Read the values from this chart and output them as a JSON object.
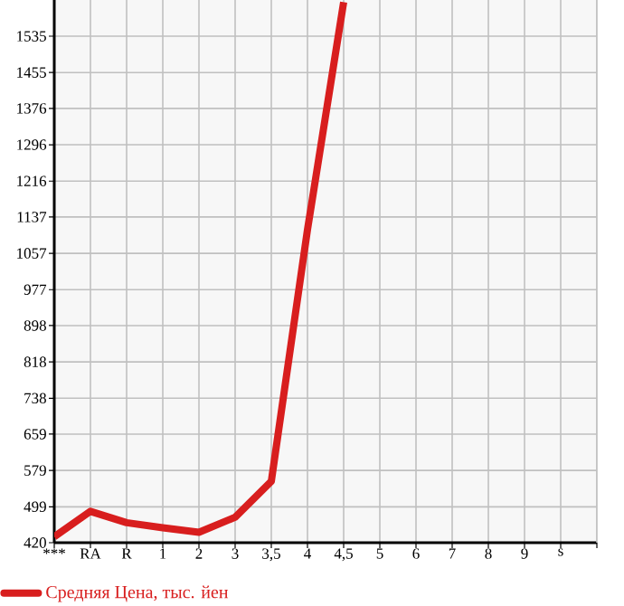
{
  "chart_data": {
    "type": "line",
    "categories": [
      "***",
      "RA",
      "R",
      "1",
      "2",
      "3",
      "3,5",
      "4",
      "4,5",
      "5",
      "6",
      "7",
      "8",
      "9",
      "s"
    ],
    "series": [
      {
        "name": "Средняя Цена, тыс. йен",
        "color": "#d81e1e",
        "values": [
          433,
          489,
          464,
          453,
          443,
          476,
          555,
          1109,
          1610,
          null,
          null,
          null,
          null,
          null,
          null
        ]
      }
    ],
    "ylim": [
      420,
      1614.7
    ],
    "yticks": [
      420,
      499,
      579,
      659,
      738,
      818,
      898,
      977,
      1057,
      1137,
      1216,
      1296,
      1376,
      1455,
      1535
    ],
    "grid": true,
    "legend": "bottom",
    "marker": "none",
    "line_style": "solid"
  }
}
